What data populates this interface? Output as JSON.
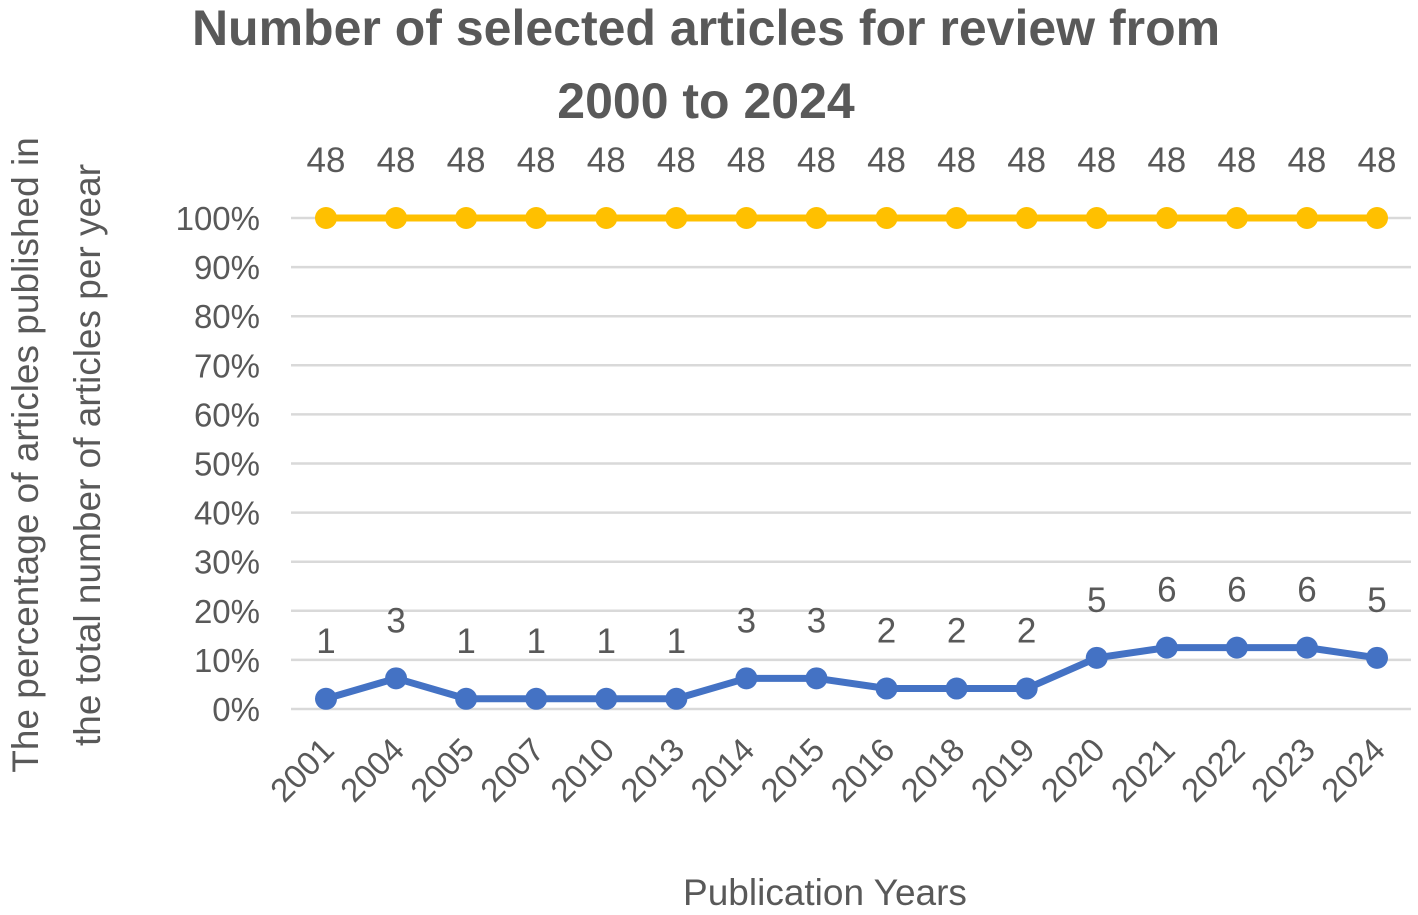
{
  "chart_data": {
    "type": "line",
    "title_lines": [
      "Number of selected articles for review from",
      "2000 to 2024"
    ],
    "xlabel": "Publication Years",
    "ylabel_lines": [
      "The percentage of articles published in",
      "the total number of articles per year"
    ],
    "categories": [
      "2001",
      "2004",
      "2005",
      "2007",
      "2010",
      "2013",
      "2014",
      "2015",
      "2016",
      "2018",
      "2019",
      "2020",
      "2021",
      "2022",
      "2023",
      "2024"
    ],
    "y_ticks": [
      "0%",
      "10%",
      "20%",
      "30%",
      "40%",
      "50%",
      "60%",
      "70%",
      "80%",
      "90%",
      "100%"
    ],
    "ylim": [
      0,
      100
    ],
    "grid": true,
    "series": [
      {
        "color": "#4472C4",
        "values": [
          2.08,
          6.25,
          2.08,
          2.08,
          2.08,
          2.08,
          6.25,
          6.25,
          4.17,
          4.17,
          4.17,
          10.42,
          12.5,
          12.5,
          12.5,
          10.42
        ],
        "data_labels": [
          "1",
          "3",
          "1",
          "1",
          "1",
          "1",
          "3",
          "3",
          "2",
          "2",
          "2",
          "5",
          "6",
          "6",
          "6",
          "5"
        ]
      },
      {
        "color": "#FFC000",
        "values": [
          100,
          100,
          100,
          100,
          100,
          100,
          100,
          100,
          100,
          100,
          100,
          100,
          100,
          100,
          100,
          100
        ],
        "data_labels": [
          "48",
          "48",
          "48",
          "48",
          "48",
          "48",
          "48",
          "48",
          "48",
          "48",
          "48",
          "48",
          "48",
          "48",
          "48",
          "48"
        ]
      }
    ]
  }
}
